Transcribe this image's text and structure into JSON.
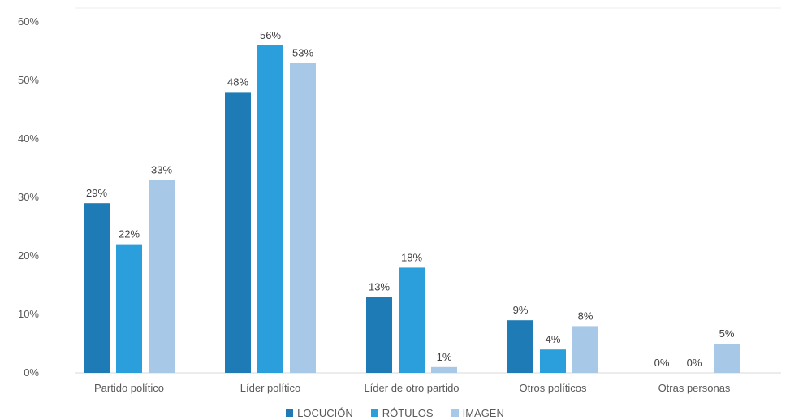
{
  "chart_data": {
    "type": "bar",
    "title": "",
    "xlabel": "",
    "ylabel": "",
    "categories": [
      "Partido político",
      "Líder político",
      "Líder de otro partido",
      "Otros políticos",
      "Otras personas"
    ],
    "series": [
      {
        "name": "LOCUCIÓN",
        "color": "#1f7bb6",
        "values": [
          29,
          48,
          13,
          9,
          0
        ],
        "labels": [
          "29%",
          "48%",
          "13%",
          "9%",
          "0%"
        ]
      },
      {
        "name": "RÓTULOS",
        "color": "#2a9fdb",
        "values": [
          22,
          56,
          18,
          4,
          0
        ],
        "labels": [
          "22%",
          "56%",
          "18%",
          "4%",
          "0%"
        ]
      },
      {
        "name": "IMAGEN",
        "color": "#a8c8e8",
        "values": [
          33,
          53,
          1,
          8,
          5
        ],
        "labels": [
          "33%",
          "53%",
          "1%",
          "8%",
          "5%"
        ]
      }
    ],
    "ylim": [
      0,
      60
    ],
    "yticks": [
      0,
      10,
      20,
      30,
      40,
      50,
      60
    ],
    "ytick_labels": [
      "0%",
      "10%",
      "20%",
      "30%",
      "40%",
      "50%",
      "60%"
    ],
    "grid": false,
    "legend_position": "bottom"
  }
}
